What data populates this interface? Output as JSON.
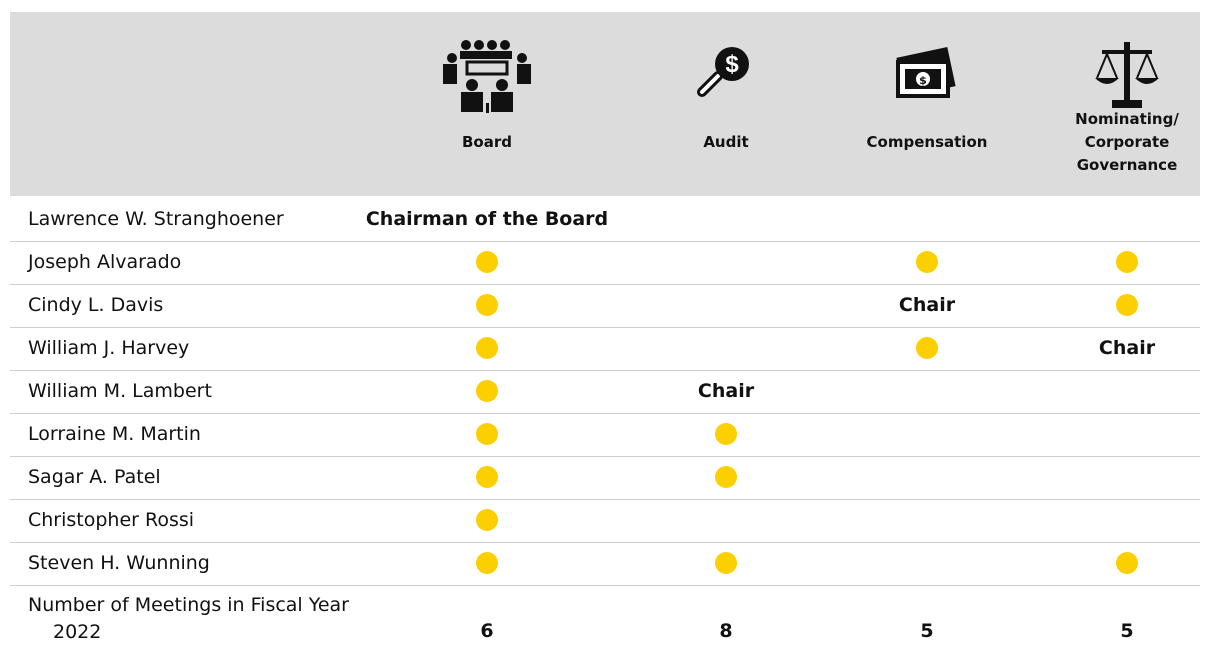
{
  "table": {
    "columns": [
      "Board",
      "Audit",
      "Compensation",
      "Nominating/ Corporate Governance"
    ],
    "rows": [
      {
        "name": "Lawrence W. Stranghoener",
        "cells": [
          "Chairman of the Board",
          null,
          null,
          null
        ]
      },
      {
        "name": "Joseph Alvarado",
        "cells": [
          true,
          null,
          true,
          true
        ]
      },
      {
        "name": "Cindy L. Davis",
        "cells": [
          true,
          null,
          "Chair",
          true
        ]
      },
      {
        "name": "William J. Harvey",
        "cells": [
          true,
          null,
          true,
          "Chair"
        ]
      },
      {
        "name": "William M. Lambert",
        "cells": [
          true,
          "Chair",
          null,
          null
        ]
      },
      {
        "name": "Lorraine M. Martin",
        "cells": [
          true,
          true,
          null,
          null
        ]
      },
      {
        "name": "Sagar A. Patel",
        "cells": [
          true,
          true,
          null,
          null
        ]
      },
      {
        "name": "Christopher Rossi",
        "cells": [
          true,
          null,
          null,
          null
        ]
      },
      {
        "name": "Steven H. Wunning",
        "cells": [
          true,
          true,
          null,
          true
        ]
      }
    ],
    "footer": {
      "label": "Number of Meetings in Fiscal Year 2022",
      "values": [
        6,
        8,
        5,
        5
      ]
    }
  }
}
